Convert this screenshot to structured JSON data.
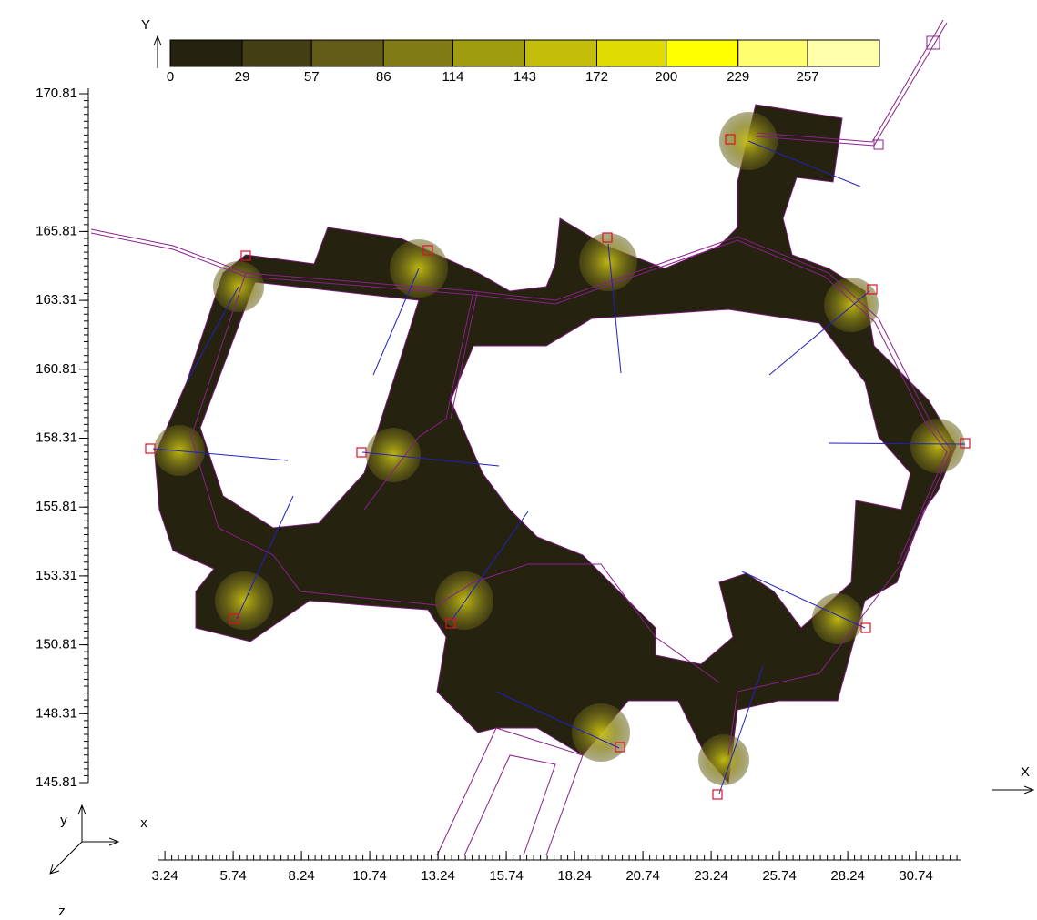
{
  "chart_data": {
    "type": "contour",
    "xlabel": "X",
    "ylabel": "Y",
    "xlim": [
      2.97,
      32.37
    ],
    "xticks": [
      3.24,
      5.74,
      8.24,
      10.74,
      13.24,
      15.74,
      18.24,
      20.74,
      23.24,
      25.74,
      28.24,
      30.74
    ],
    "ylim": [
      145.81,
      170.81
    ],
    "yticks": [
      145.81,
      148.31,
      150.81,
      153.31,
      155.81,
      158.31,
      160.81,
      163.31,
      165.81,
      170.81
    ],
    "zlim": [
      0,
      286
    ],
    "colorbar_ticks": [
      0,
      29,
      57,
      86,
      114,
      143,
      172,
      200,
      229,
      257
    ],
    "colorbar_colors": [
      "#25220f",
      "#433e14",
      "#625c18",
      "#807b14",
      "#a09c10",
      "#c2be0a",
      "#e0dc03",
      "#ffff00",
      "#ffff70",
      "#ffffaa"
    ]
  },
  "axis_triad": {
    "x": "x",
    "y": "y",
    "z": "z"
  }
}
